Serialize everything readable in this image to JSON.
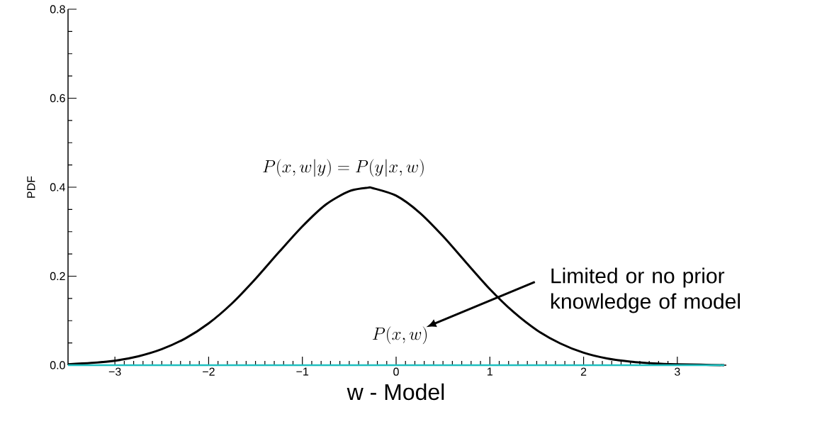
{
  "chart_data": {
    "type": "line",
    "xlabel": "w - Model",
    "ylabel": "PDF",
    "xlim": [
      -3.5,
      3.5
    ],
    "ylim": [
      0,
      0.8
    ],
    "xticks": [
      {
        "value": -3,
        "label": "−3"
      },
      {
        "value": -2,
        "label": "−2"
      },
      {
        "value": -1,
        "label": "−1"
      },
      0,
      1,
      2,
      3
    ],
    "yticks": [
      {
        "value": 0,
        "label": "0.0"
      },
      {
        "value": 0.2,
        "label": "0.2"
      },
      {
        "value": 0.4,
        "label": "0.4"
      },
      {
        "value": 0.6,
        "label": "0.6"
      },
      {
        "value": 0.8,
        "label": "0.8"
      }
    ],
    "grid": false,
    "marker": "none",
    "line_style": "solid",
    "series": [
      {
        "color": "#000000",
        "x": [
          -3.5,
          -3.25,
          -3,
          -2.75,
          -2.5,
          -2.25,
          -2,
          -1.75,
          -1.5,
          -1.25,
          -1,
          -0.75,
          -0.5,
          -0.3,
          -0.25,
          0,
          0.25,
          0.5,
          0.75,
          1,
          1.25,
          1.5,
          1.75,
          2,
          2.25,
          2.5,
          2.75,
          3,
          3.25,
          3.5
        ],
        "values": [
          0.002,
          0.005,
          0.01,
          0.02,
          0.036,
          0.06,
          0.094,
          0.139,
          0.194,
          0.254,
          0.312,
          0.361,
          0.391,
          0.399,
          0.398,
          0.381,
          0.343,
          0.29,
          0.23,
          0.171,
          0.12,
          0.079,
          0.049,
          0.028,
          0.015,
          0.008,
          0.004,
          0.002,
          0.001,
          0.0
        ]
      },
      {
        "color": "#1fbfbf",
        "x": [
          -3.5,
          3.5
        ],
        "values": [
          0,
          0
        ]
      }
    ],
    "annotations": [
      "P(x,w|y)=P(y|x,w)",
      "P(x,w)",
      "Limited or no prior knowledge of model"
    ]
  }
}
